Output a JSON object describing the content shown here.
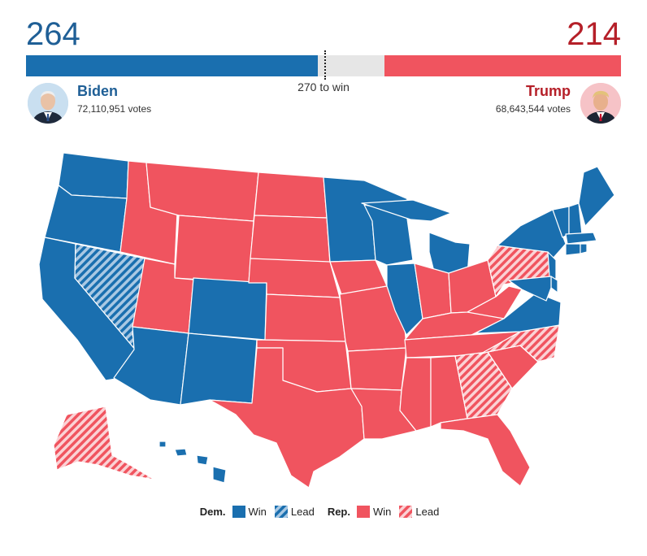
{
  "header": {
    "dem_electoral_votes": "264",
    "rep_electoral_votes": "214",
    "threshold_label": "270 to win"
  },
  "bar": {
    "total": 538,
    "dem": 264,
    "rep": 214,
    "threshold": 270
  },
  "candidates": {
    "dem": {
      "name": "Biden",
      "votes": "72,110,951 votes"
    },
    "rep": {
      "name": "Trump",
      "votes": "68,643,544 votes"
    }
  },
  "legend": {
    "dem_label": "Dem.",
    "dem_win": "Win",
    "dem_lead": "Lead",
    "rep_label": "Rep.",
    "rep_win": "Win",
    "rep_lead": "Lead"
  },
  "colors": {
    "dem": "#1a6faf",
    "rep": "#f0545f",
    "undecided": "#e6e6e6",
    "dem_text": "#1f5f96",
    "rep_text": "#b51f28"
  },
  "map": {
    "states": {
      "WA": "dem_win",
      "OR": "dem_win",
      "CA": "dem_win",
      "NV": "dem_lead",
      "ID": "rep_win",
      "MT": "rep_win",
      "WY": "rep_win",
      "UT": "rep_win",
      "AZ": "dem_win",
      "CO": "dem_win",
      "NM": "dem_win",
      "ND": "rep_win",
      "SD": "rep_win",
      "NE": "rep_win",
      "KS": "rep_win",
      "OK": "rep_win",
      "TX": "rep_win",
      "MN": "dem_win",
      "IA": "rep_win",
      "MO": "rep_win",
      "AR": "rep_win",
      "LA": "rep_win",
      "WI": "dem_win",
      "MI": "dem_win",
      "IL": "dem_win",
      "IN": "rep_win",
      "OH": "rep_win",
      "KY": "rep_win",
      "TN": "rep_win",
      "MS": "rep_win",
      "AL": "rep_win",
      "GA": "rep_lead",
      "FL": "rep_win",
      "SC": "rep_win",
      "NC": "rep_lead",
      "VA": "dem_win",
      "WV": "rep_win",
      "PA": "rep_lead",
      "NY": "dem_win",
      "VT": "dem_win",
      "NH": "dem_win",
      "ME": "dem_win",
      "MA": "dem_win",
      "CT": "dem_win",
      "RI": "dem_win",
      "NJ": "dem_win",
      "DE": "dem_win",
      "MD": "dem_win",
      "AK": "rep_lead",
      "HI": "dem_win"
    }
  }
}
